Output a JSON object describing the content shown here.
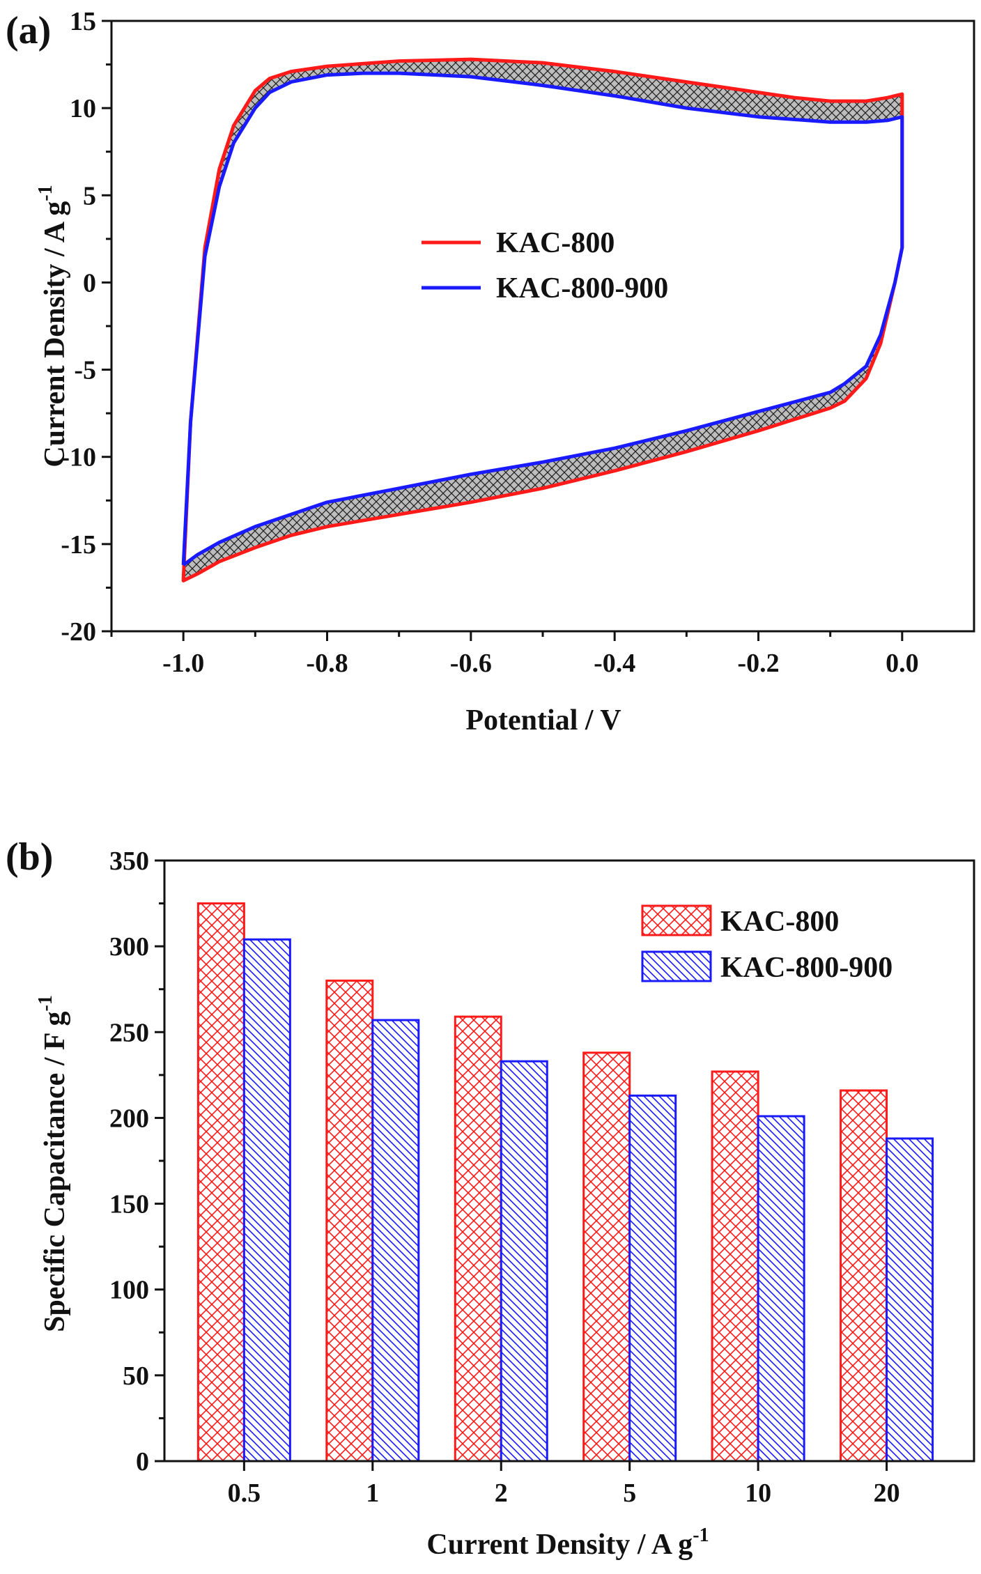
{
  "colors": {
    "kac800": "#ff1a1a",
    "kac800900": "#1a1aff",
    "fill": "#b8b8b8",
    "axis": "#111111"
  },
  "panels": {
    "a": "(a)",
    "b": "(b)"
  },
  "chart_data": [
    {
      "type": "line",
      "title": "",
      "xlabel": "Potential / V",
      "ylabel": "Current Density / A g",
      "ylabel_superscript": "-1",
      "xlim": [
        -1.1,
        0.1
      ],
      "ylim": [
        -20,
        15
      ],
      "xticks": [
        -1.0,
        -0.8,
        -0.6,
        -0.4,
        -0.2,
        0.0
      ],
      "xtick_labels": [
        "-1.0",
        "-0.8",
        "-0.6",
        "-0.4",
        "-0.2",
        "0.0"
      ],
      "yticks": [
        -20,
        -15,
        -10,
        -5,
        0,
        5,
        10,
        15
      ],
      "ytick_labels": [
        "-20",
        "-15",
        "-10",
        "-5",
        "0",
        "5",
        "10",
        "15"
      ],
      "legend_position": "center",
      "shaded_between_curves": true,
      "series": [
        {
          "name": "KAC-800",
          "color": "#ff1a1a",
          "x": [
            -1.0,
            -0.99,
            -0.97,
            -0.95,
            -0.93,
            -0.9,
            -0.88,
            -0.85,
            -0.8,
            -0.7,
            -0.6,
            -0.5,
            -0.4,
            -0.3,
            -0.2,
            -0.15,
            -0.1,
            -0.05,
            -0.02,
            0.0,
            0.0,
            -0.01,
            -0.03,
            -0.05,
            -0.08,
            -0.1,
            -0.2,
            -0.3,
            -0.4,
            -0.5,
            -0.6,
            -0.7,
            -0.8,
            -0.85,
            -0.9,
            -0.95,
            -0.98,
            -1.0,
            -1.0
          ],
          "y": [
            -17.0,
            -8.0,
            2.0,
            6.5,
            9.0,
            11.0,
            11.7,
            12.1,
            12.4,
            12.7,
            12.8,
            12.6,
            12.1,
            11.5,
            10.9,
            10.6,
            10.4,
            10.4,
            10.6,
            10.8,
            2.0,
            0.0,
            -3.5,
            -5.5,
            -6.8,
            -7.2,
            -8.5,
            -9.7,
            -10.8,
            -11.8,
            -12.6,
            -13.3,
            -14.0,
            -14.5,
            -15.2,
            -16.0,
            -16.7,
            -17.1,
            -17.0
          ]
        },
        {
          "name": "KAC-800-900",
          "color": "#1a1aff",
          "x": [
            -1.0,
            -0.99,
            -0.97,
            -0.95,
            -0.93,
            -0.9,
            -0.88,
            -0.85,
            -0.8,
            -0.75,
            -0.7,
            -0.6,
            -0.5,
            -0.4,
            -0.3,
            -0.2,
            -0.1,
            -0.07,
            -0.05,
            -0.02,
            0.0,
            0.0,
            -0.01,
            -0.03,
            -0.05,
            -0.08,
            -0.1,
            -0.2,
            -0.3,
            -0.4,
            -0.5,
            -0.6,
            -0.7,
            -0.8,
            -0.85,
            -0.9,
            -0.95,
            -0.98,
            -1.0,
            -1.0
          ],
          "y": [
            -16.2,
            -8.0,
            1.5,
            5.5,
            8.0,
            10.0,
            10.9,
            11.5,
            11.9,
            12.0,
            12.0,
            11.8,
            11.3,
            10.7,
            10.0,
            9.5,
            9.2,
            9.2,
            9.2,
            9.3,
            9.5,
            2.0,
            0.0,
            -3.0,
            -4.8,
            -5.8,
            -6.3,
            -7.4,
            -8.5,
            -9.5,
            -10.3,
            -11.0,
            -11.8,
            -12.6,
            -13.3,
            -14.0,
            -14.9,
            -15.6,
            -16.2,
            -16.2
          ]
        }
      ]
    },
    {
      "type": "bar",
      "title": "",
      "xlabel": "Current Density / A g",
      "xlabel_superscript": "-1",
      "ylabel": "Specific Capacitance / F g",
      "ylabel_superscript": "-1",
      "ylim": [
        0,
        350
      ],
      "yticks": [
        0,
        50,
        100,
        150,
        200,
        250,
        300,
        350
      ],
      "ytick_labels": [
        "0",
        "50",
        "100",
        "150",
        "200",
        "250",
        "300",
        "350"
      ],
      "categories": [
        "0.5",
        "1",
        "2",
        "5",
        "10",
        "20"
      ],
      "legend_position": "top-right",
      "series": [
        {
          "name": "KAC-800",
          "color": "#ff1a1a",
          "pattern": "crosshatch",
          "values": [
            325,
            280,
            259,
            238,
            227,
            216
          ]
        },
        {
          "name": "KAC-800-900",
          "color": "#1a1aff",
          "pattern": "diagonal",
          "values": [
            304,
            257,
            233,
            213,
            201,
            188
          ]
        }
      ]
    }
  ]
}
